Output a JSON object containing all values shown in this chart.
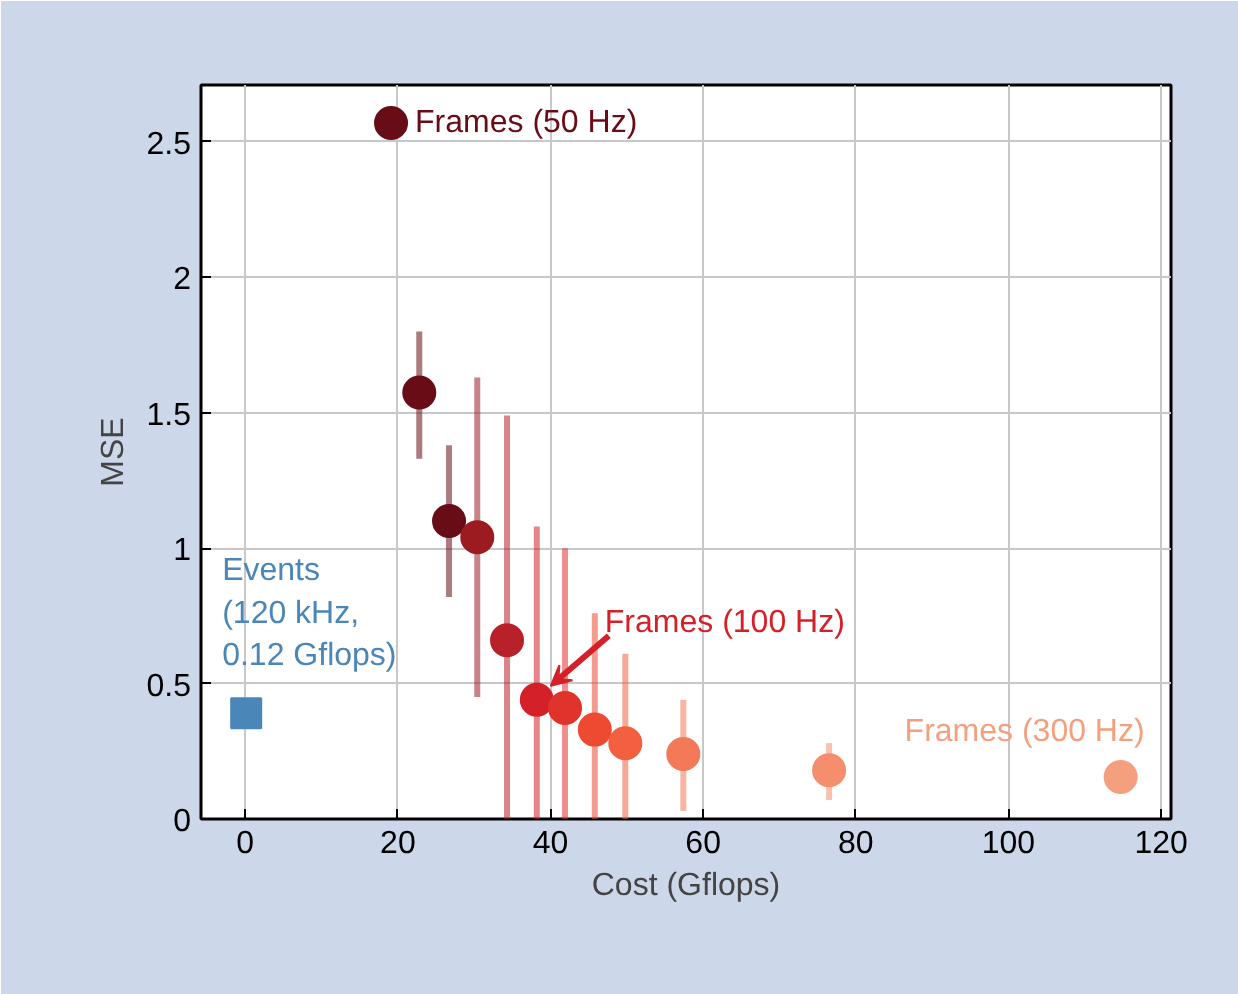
{
  "chart_data": {
    "type": "scatter",
    "xlabel": "Cost (Gflops)",
    "ylabel": "MSE",
    "xlim": [
      -5.8,
      121.3
    ],
    "ylim": [
      0,
      2.71
    ],
    "xticks": [
      0,
      20,
      40,
      60,
      80,
      100,
      120
    ],
    "yticks": [
      0,
      0.5,
      1,
      {
        "value": 1.5,
        "label": "1.5"
      },
      2,
      {
        "value": 2.5,
        "label": "2.5"
      }
    ],
    "grid": true,
    "series": [
      {
        "marker": "circle",
        "x": [
          19.1,
          22.8,
          26.7,
          30.4,
          34.3,
          38.2,
          41.9,
          45.8,
          49.8,
          57.4,
          76.5,
          114.7
        ],
        "values": [
          2.57,
          1.575,
          1.1,
          1.04,
          0.66,
          0.44,
          0.41,
          0.33,
          0.28,
          0.24,
          0.18,
          0.155
        ],
        "colors": [
          "#680c16",
          "#680c16",
          "#680c16",
          "#9c1b20",
          "#b8202a",
          "#d42029",
          "#e0332b",
          "#ee4a32",
          "#f3603f",
          "#f47958",
          "#f58e6c",
          "#f4a07f"
        ],
        "errors": [
          null,
          [
            1.33,
            1.8
          ],
          [
            0.82,
            1.38
          ],
          [
            0.45,
            1.63
          ],
          [
            0,
            1.49
          ],
          [
            0,
            1.08
          ],
          [
            0,
            1.0
          ],
          [
            0,
            0.76
          ],
          [
            0,
            0.61
          ],
          [
            0.03,
            0.44
          ],
          [
            0.07,
            0.28
          ],
          null
        ]
      },
      {
        "marker": "square",
        "x": [
          0.12
        ],
        "values": [
          0.39
        ],
        "color": "#4a86b8"
      }
    ],
    "annotations": [
      {
        "text": "Frames (50 Hz)",
        "x": 19.1,
        "y": 2.57
      },
      {
        "text": "Frames (100 Hz)",
        "x": 38.2,
        "y": 0.44
      },
      {
        "text": "Frames (300 Hz)",
        "x": 114.7,
        "y": 0.155
      },
      {
        "text": "Events\n(120 kHz,\n0.12 Gflops)",
        "x": 0.12,
        "y": 0.39
      }
    ]
  }
}
